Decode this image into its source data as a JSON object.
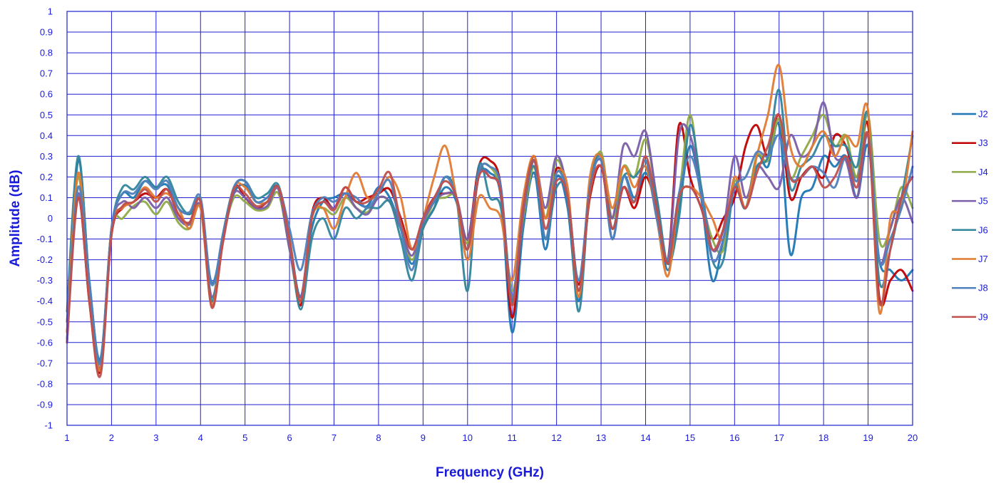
{
  "chart_data": {
    "type": "line",
    "xlabel": "Frequency (GHz)",
    "ylabel": "Amplitude (dB)",
    "xlim": [
      1,
      20
    ],
    "ylim": [
      -1,
      1
    ],
    "x_ticks": [
      1,
      2,
      3,
      4,
      5,
      6,
      7,
      8,
      9,
      10,
      11,
      12,
      13,
      14,
      15,
      16,
      17,
      18,
      19,
      20
    ],
    "x_tick_labels": [
      "1",
      "2",
      "3",
      "4",
      "5",
      "6",
      "7",
      "8",
      "9",
      "10",
      "11",
      "12",
      "13",
      "14",
      "15",
      "16",
      "17",
      "18",
      "19",
      "20"
    ],
    "y_ticks": [
      -1,
      -0.9,
      -0.8,
      -0.7,
      -0.6,
      -0.5,
      -0.4,
      -0.3,
      -0.2,
      -0.1,
      0,
      0.1,
      0.2,
      0.3,
      0.4,
      0.5,
      0.6,
      0.7,
      0.8,
      0.9,
      1
    ],
    "y_tick_labels": [
      "-1",
      "-0.9",
      "-0.8",
      "-0.7",
      "-0.6",
      "-0.5",
      "-0.4",
      "-0.3",
      "-0.2",
      "-0.1",
      "0",
      "0.1",
      "0.2",
      "0.3",
      "0.4",
      "0.5",
      "0.6",
      "0.7",
      "0.8",
      "0.9",
      "1"
    ],
    "grid": true,
    "grid_color": "#1f1fd0",
    "legend_position": "right",
    "x": [
      1,
      1.25,
      1.5,
      1.75,
      2,
      2.25,
      2.5,
      2.75,
      3,
      3.25,
      3.5,
      3.75,
      4,
      4.25,
      4.5,
      4.75,
      5,
      5.25,
      5.5,
      5.75,
      6,
      6.25,
      6.5,
      6.75,
      7,
      7.25,
      7.5,
      7.75,
      8,
      8.25,
      8.5,
      8.75,
      9,
      9.25,
      9.5,
      9.75,
      10,
      10.25,
      10.5,
      10.75,
      11,
      11.25,
      11.5,
      11.75,
      12,
      12.25,
      12.5,
      12.75,
      13,
      13.25,
      13.5,
      13.75,
      14,
      14.25,
      14.5,
      14.75,
      15,
      15.25,
      15.5,
      15.75,
      16,
      16.25,
      16.5,
      16.75,
      17,
      17.25,
      17.5,
      17.75,
      18,
      18.25,
      18.5,
      18.75,
      19,
      19.25,
      19.5,
      19.75,
      20
    ],
    "series": [
      {
        "name": "J2",
        "color": "#1f77b4",
        "values": [
          -0.6,
          0.28,
          -0.3,
          -0.68,
          -0.05,
          0.12,
          0.1,
          0.18,
          0.15,
          0.16,
          0.05,
          0.02,
          0.05,
          -0.31,
          -0.1,
          0.12,
          0.16,
          0.08,
          0.1,
          0.15,
          -0.1,
          -0.38,
          -0.05,
          0.08,
          0.1,
          0.12,
          0.08,
          0.06,
          0.15,
          0.1,
          -0.05,
          -0.22,
          -0.05,
          0.05,
          0.15,
          0.08,
          -0.15,
          0.2,
          0.22,
          0.1,
          -0.55,
          -0.05,
          0.22,
          -0.15,
          0.2,
          0.05,
          -0.4,
          0.15,
          0.3,
          -0.1,
          0.2,
          0.1,
          0.22,
          0.05,
          -0.25,
          0.05,
          0.35,
          0.1,
          -0.3,
          -0.1,
          0.15,
          0.05,
          0.3,
          0.25,
          0.45,
          -0.17,
          0.1,
          0.15,
          0.3,
          0.25,
          0.3,
          0.1,
          0.35,
          -0.2,
          -0.25,
          -0.3,
          -0.25
        ]
      },
      {
        "name": "J3",
        "color": "#c00000",
        "values": [
          -0.55,
          0.1,
          -0.4,
          -0.74,
          -0.08,
          0.05,
          0.08,
          0.12,
          0.1,
          0.14,
          0.02,
          -0.02,
          0.08,
          -0.42,
          -0.12,
          0.15,
          0.1,
          0.05,
          0.08,
          0.15,
          -0.12,
          -0.42,
          0.02,
          0.1,
          0.05,
          0.15,
          0.08,
          0.1,
          0.12,
          0.14,
          0.0,
          -0.15,
          0.0,
          0.1,
          0.12,
          0.1,
          -0.1,
          0.25,
          0.28,
          0.15,
          -0.48,
          0.05,
          0.3,
          0.0,
          0.24,
          0.12,
          -0.32,
          0.1,
          0.25,
          -0.05,
          0.15,
          0.05,
          0.2,
          0.05,
          -0.2,
          0.45,
          0.2,
          0.05,
          -0.1,
          0.0,
          0.1,
          0.35,
          0.45,
          0.3,
          0.5,
          0.1,
          0.2,
          0.25,
          0.2,
          0.4,
          0.35,
          0.2,
          0.45,
          -0.38,
          -0.3,
          -0.25,
          -0.35
        ]
      },
      {
        "name": "J4",
        "color": "#8faa47",
        "values": [
          -0.5,
          0.2,
          -0.35,
          -0.7,
          -0.05,
          0.0,
          0.06,
          0.08,
          0.02,
          0.08,
          -0.02,
          -0.05,
          0.05,
          -0.4,
          -0.1,
          0.1,
          0.08,
          0.04,
          0.05,
          0.12,
          -0.15,
          -0.4,
          0.0,
          0.05,
          0.02,
          0.1,
          0.05,
          0.03,
          0.1,
          0.08,
          -0.05,
          -0.2,
          -0.05,
          0.08,
          0.1,
          0.1,
          -0.12,
          0.22,
          0.25,
          0.12,
          -0.35,
          0.0,
          0.25,
          0.0,
          0.28,
          0.1,
          -0.35,
          0.12,
          0.32,
          0.0,
          0.25,
          0.2,
          0.38,
          0.1,
          -0.22,
          0.1,
          0.5,
          0.12,
          -0.1,
          -0.15,
          0.18,
          0.05,
          0.3,
          0.28,
          0.48,
          0.2,
          0.3,
          0.4,
          0.5,
          0.35,
          0.4,
          0.2,
          0.5,
          -0.1,
          -0.05,
          0.15,
          0.05
        ]
      },
      {
        "name": "J5",
        "color": "#7b5ea8",
        "values": [
          -0.5,
          0.12,
          -0.35,
          -0.72,
          -0.05,
          0.08,
          0.05,
          0.1,
          0.05,
          0.1,
          0.0,
          -0.03,
          0.06,
          -0.38,
          -0.1,
          0.12,
          0.1,
          0.05,
          0.06,
          0.14,
          -0.15,
          -0.38,
          0.0,
          0.08,
          0.05,
          0.12,
          0.05,
          0.02,
          0.1,
          0.08,
          -0.05,
          -0.18,
          -0.02,
          0.08,
          0.12,
          0.1,
          -0.1,
          0.22,
          0.2,
          0.12,
          -0.4,
          0.02,
          0.28,
          0.05,
          0.3,
          0.12,
          -0.35,
          0.15,
          0.28,
          0.0,
          0.35,
          0.3,
          0.42,
          0.1,
          -0.2,
          0.4,
          0.4,
          0.15,
          -0.15,
          -0.05,
          0.3,
          0.1,
          0.25,
          0.2,
          0.15,
          0.4,
          0.3,
          0.35,
          0.56,
          0.3,
          0.28,
          0.1,
          0.4,
          -0.2,
          -0.05,
          0.1,
          -0.02
        ]
      },
      {
        "name": "J6",
        "color": "#31859c",
        "values": [
          -0.45,
          0.3,
          -0.3,
          -0.69,
          -0.05,
          0.15,
          0.14,
          0.2,
          0.15,
          0.2,
          0.08,
          0.02,
          0.08,
          -0.4,
          -0.08,
          0.15,
          0.18,
          0.1,
          0.12,
          0.16,
          -0.1,
          -0.44,
          -0.1,
          0.0,
          -0.1,
          0.05,
          0.0,
          0.05,
          0.05,
          0.08,
          -0.1,
          -0.3,
          -0.05,
          0.05,
          0.2,
          0.1,
          -0.35,
          0.25,
          0.1,
          0.05,
          -0.4,
          0.05,
          0.25,
          -0.1,
          0.15,
          0.1,
          -0.45,
          0.15,
          0.3,
          -0.05,
          0.2,
          0.2,
          0.25,
          0.1,
          -0.22,
          0.0,
          0.45,
          0.15,
          -0.2,
          -0.2,
          0.15,
          0.05,
          0.25,
          0.3,
          0.62,
          0.15,
          0.25,
          0.3,
          0.4,
          0.35,
          0.35,
          0.25,
          0.5,
          -0.3,
          -0.15,
          0.1,
          0.4
        ]
      },
      {
        "name": "J7",
        "color": "#e07b32",
        "values": [
          -0.55,
          0.22,
          -0.35,
          -0.73,
          -0.05,
          0.05,
          0.08,
          0.15,
          0.1,
          0.12,
          0.05,
          -0.05,
          0.05,
          -0.42,
          -0.1,
          0.15,
          0.15,
          0.08,
          0.08,
          0.15,
          -0.1,
          -0.4,
          0.0,
          0.05,
          -0.05,
          0.1,
          0.22,
          0.1,
          0.12,
          0.2,
          0.1,
          -0.15,
          0.0,
          0.2,
          0.35,
          0.1,
          -0.2,
          0.1,
          0.05,
          0.0,
          -0.3,
          0.1,
          0.3,
          0.0,
          0.22,
          0.15,
          -0.38,
          0.2,
          0.3,
          0.05,
          0.25,
          0.15,
          0.25,
          0.0,
          -0.28,
          0.1,
          0.15,
          0.1,
          0.0,
          -0.1,
          0.2,
          0.05,
          0.3,
          0.5,
          0.74,
          0.35,
          0.25,
          0.35,
          0.42,
          0.3,
          0.4,
          0.35,
          0.52,
          -0.45,
          0.0,
          0.05,
          0.42
        ]
      },
      {
        "name": "J8",
        "color": "#4f81bd",
        "values": [
          -0.58,
          0.15,
          -0.3,
          -0.7,
          -0.05,
          0.12,
          0.12,
          0.18,
          0.14,
          0.18,
          0.05,
          0.03,
          0.1,
          -0.32,
          -0.08,
          0.15,
          0.18,
          0.08,
          0.1,
          0.15,
          -0.05,
          -0.25,
          0.02,
          0.1,
          0.08,
          0.12,
          0.1,
          0.05,
          0.12,
          0.18,
          -0.05,
          -0.25,
          0.0,
          0.08,
          0.2,
          0.1,
          -0.15,
          0.22,
          0.25,
          0.15,
          -0.38,
          0.05,
          0.28,
          -0.1,
          0.22,
          0.1,
          -0.3,
          0.15,
          0.28,
          -0.1,
          0.2,
          0.08,
          0.28,
          0.0,
          -0.2,
          0.12,
          0.3,
          0.12,
          -0.2,
          -0.1,
          0.15,
          0.2,
          0.32,
          0.3,
          0.4,
          0.2,
          0.2,
          0.25,
          0.22,
          0.15,
          0.3,
          0.18,
          0.4,
          -0.2,
          -0.1,
          0.05,
          0.25
        ]
      },
      {
        "name": "J9",
        "color": "#c0504d",
        "values": [
          -0.6,
          0.1,
          -0.4,
          -0.76,
          -0.08,
          0.06,
          0.08,
          0.14,
          0.08,
          0.14,
          0.02,
          -0.02,
          0.08,
          -0.43,
          -0.12,
          0.14,
          0.12,
          0.06,
          0.08,
          0.15,
          -0.1,
          -0.4,
          0.0,
          0.08,
          0.04,
          0.15,
          0.08,
          0.08,
          0.14,
          0.22,
          -0.02,
          -0.15,
          0.0,
          0.1,
          0.18,
          0.1,
          -0.15,
          0.2,
          0.2,
          0.12,
          -0.42,
          0.05,
          0.28,
          -0.05,
          0.18,
          0.1,
          -0.35,
          0.12,
          0.25,
          -0.05,
          0.15,
          0.08,
          0.3,
          0.05,
          -0.22,
          0.1,
          0.15,
          0.05,
          -0.15,
          -0.05,
          0.15,
          0.05,
          0.22,
          0.35,
          0.5,
          0.2,
          0.2,
          0.25,
          0.15,
          0.2,
          0.3,
          0.15,
          0.4,
          -0.4,
          -0.15,
          0.1,
          0.2
        ]
      }
    ]
  }
}
